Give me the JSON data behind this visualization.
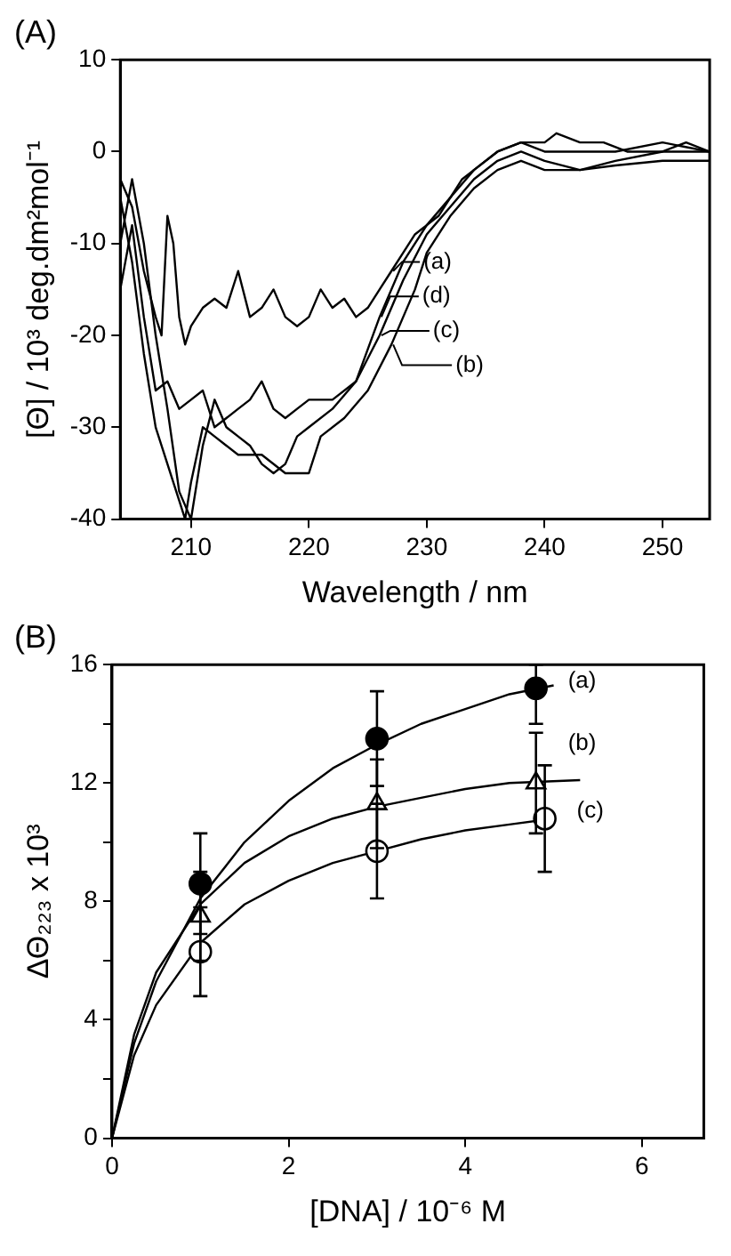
{
  "chart_data": [
    {
      "type": "line",
      "title": "(A)",
      "xlabel": "Wavelength / nm",
      "ylabel": "[Θ] / 10³ deg.dm²mol⁻¹",
      "xlim": [
        204,
        254
      ],
      "ylim": [
        -40,
        10
      ],
      "xticks": [
        210,
        220,
        230,
        240,
        250
      ],
      "yticks": [
        -40,
        -30,
        -20,
        -10,
        0,
        10
      ],
      "grid": false,
      "legend": "right",
      "marker": "none",
      "series": [
        {
          "name": "(a)",
          "color": "#000000",
          "x": [
            204,
            205,
            206,
            207,
            207.5,
            208,
            208.5,
            209,
            209.5,
            210,
            211,
            212,
            213,
            214,
            215,
            216,
            217,
            218,
            219,
            220,
            221,
            222,
            223,
            224,
            225,
            226,
            227,
            228,
            229,
            230,
            231,
            232,
            233,
            234,
            236,
            238,
            240,
            241,
            243,
            245,
            247,
            250,
            252,
            254
          ],
          "values": [
            -3,
            -6,
            -13,
            -18,
            -20,
            -7,
            -10,
            -18,
            -21,
            -19,
            -17,
            -16,
            -17,
            -13,
            -18,
            -17,
            -15,
            -18,
            -19,
            -18,
            -15,
            -17,
            -16,
            -18,
            -17,
            -15,
            -13,
            -11,
            -9,
            -8,
            -7,
            -5,
            -3,
            -2,
            0,
            1,
            1,
            2,
            1,
            1,
            0,
            0,
            1,
            0
          ]
        },
        {
          "name": "(d)",
          "color": "#000000",
          "x": [
            204,
            205,
            206,
            207,
            208,
            209,
            210,
            211,
            212,
            213,
            214,
            215,
            216,
            217,
            218,
            219,
            220,
            222,
            224,
            226,
            228,
            230,
            232,
            234,
            236,
            238,
            240,
            243,
            246,
            250,
            254
          ],
          "values": [
            -15,
            -8,
            -18,
            -26,
            -25,
            -28,
            -27,
            -26,
            -30,
            -29,
            -28,
            -27,
            -25,
            -28,
            -29,
            -28,
            -27,
            -27,
            -25,
            -18,
            -12,
            -8,
            -5,
            -2,
            0,
            1,
            0,
            0,
            0,
            1,
            0
          ]
        },
        {
          "name": "(c)",
          "color": "#000000",
          "x": [
            204,
            205,
            206,
            207,
            208,
            209,
            210,
            211,
            212,
            213,
            214,
            215,
            216,
            217,
            218,
            219,
            220,
            222,
            224,
            226,
            228,
            230,
            232,
            234,
            236,
            238,
            240,
            243,
            246,
            250,
            254
          ],
          "values": [
            -10,
            -3,
            -10,
            -20,
            -28,
            -37,
            -40,
            -32,
            -27,
            -30,
            -31,
            -32,
            -34,
            -35,
            -34,
            -31,
            -30,
            -28,
            -25,
            -20,
            -14,
            -9,
            -6,
            -3,
            -1,
            0,
            -1,
            -2,
            -1,
            0,
            0
          ]
        },
        {
          "name": "(b)",
          "color": "#000000",
          "x": [
            204,
            205,
            206,
            207,
            208,
            209,
            209.5,
            210,
            211,
            212,
            213,
            214,
            216,
            218,
            220,
            221,
            223,
            225,
            227,
            229,
            230,
            232,
            234,
            236,
            238,
            240,
            243,
            246,
            250,
            254
          ],
          "values": [
            -5,
            -12,
            -22,
            -30,
            -34,
            -38,
            -40,
            -36,
            -30,
            -31,
            -32,
            -33,
            -33,
            -35,
            -35,
            -31,
            -29,
            -26,
            -21,
            -15,
            -11,
            -7,
            -4,
            -2,
            -1,
            -2,
            -2,
            -1.5,
            -1,
            -1
          ]
        }
      ]
    },
    {
      "type": "scatter",
      "title": "(B)",
      "xlabel": "[DNA] / 10⁻⁶ M",
      "ylabel": "ΔΘ₂₂₃ x 10³",
      "xlim": [
        0,
        6.7
      ],
      "ylim": [
        0,
        16
      ],
      "xticks": [
        0,
        2,
        4,
        6
      ],
      "yticks": [
        0,
        {
          "value": 2,
          "label": null
        },
        4,
        {
          "value": 6,
          "label": null
        },
        8,
        {
          "value": 10,
          "label": null
        },
        12,
        {
          "value": 14,
          "label": null
        },
        16
      ],
      "grid": false,
      "series": [
        {
          "name": "(a)",
          "color": "#000000",
          "marker": "circle",
          "x": [
            1.0,
            3.0,
            4.8
          ],
          "values": [
            8.6,
            13.5,
            15.2
          ],
          "errors": [
            1.7,
            1.6,
            [
              14.0,
              16.0
            ]
          ]
        },
        {
          "name": "(b)",
          "color": "#ffffff",
          "marker": "triangle",
          "x": [
            1.0,
            3.0,
            4.8
          ],
          "values": [
            7.5,
            11.3,
            12.0
          ],
          "errors": [
            1.5,
            1.5,
            1.7
          ]
        },
        {
          "name": "(c)",
          "color": "#ffffff",
          "marker": "circle",
          "x": [
            1.0,
            3.0,
            4.9
          ],
          "values": [
            6.3,
            9.7,
            10.8
          ],
          "errors": [
            1.5,
            1.6,
            1.8
          ]
        },
        {
          "type": "line",
          "color": "#000000",
          "x": [
            0,
            0.25,
            0.5,
            1,
            1.5,
            2,
            2.5,
            3,
            3.5,
            4,
            4.5,
            5
          ],
          "values": [
            0,
            3.2,
            5.3,
            8.1,
            10.0,
            11.4,
            12.5,
            13.3,
            14.0,
            14.5,
            15.0,
            15.3
          ]
        },
        {
          "type": "line",
          "color": "#000000",
          "x": [
            0,
            0.25,
            0.5,
            1,
            1.5,
            2,
            2.5,
            3,
            3.5,
            4,
            4.5,
            5.3
          ],
          "values": [
            0,
            3.5,
            5.6,
            7.9,
            9.3,
            10.2,
            10.8,
            11.2,
            11.5,
            11.8,
            12.0,
            12.1
          ]
        },
        {
          "type": "line",
          "color": "#000000",
          "x": [
            0,
            0.25,
            0.5,
            1,
            1.5,
            2,
            2.5,
            3,
            3.5,
            4,
            4.5,
            5
          ],
          "values": [
            0,
            2.8,
            4.5,
            6.6,
            7.9,
            8.7,
            9.3,
            9.7,
            10.1,
            10.4,
            10.6,
            10.8
          ]
        }
      ]
    }
  ]
}
